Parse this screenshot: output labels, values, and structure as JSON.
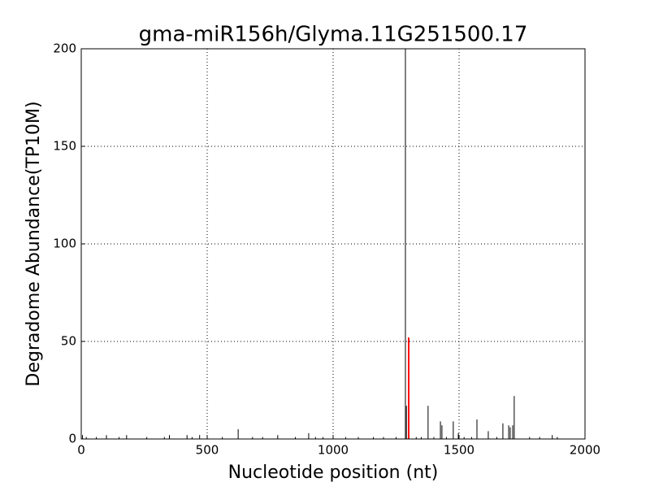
{
  "chart_data": {
    "type": "stem",
    "title": "gma-miR156h/Glyma.11G251500.17",
    "xlabel": "Nucleotide position (nt)",
    "ylabel": "Degradome Abundance(TP10M)",
    "xlim": [
      0,
      2000
    ],
    "xticks": [
      0,
      500,
      1000,
      1500,
      2000
    ],
    "ylim": [
      0,
      200
    ],
    "yticks": [
      0,
      50,
      100,
      150,
      200
    ],
    "grid": true,
    "series": [
      {
        "color": "#000000",
        "x": [
          5,
          20,
          60,
          100,
          150,
          180,
          260,
          330,
          350,
          420,
          440,
          470,
          500,
          560,
          623,
          680,
          720,
          780,
          850,
          903,
          930,
          960,
          1000,
          1050,
          1100,
          1160,
          1200,
          1250,
          1287,
          1291,
          1330,
          1350,
          1377,
          1400,
          1426,
          1432,
          1450,
          1477,
          1497,
          1520,
          1550,
          1571,
          1616,
          1650,
          1674,
          1697,
          1703,
          1713,
          1719,
          1780,
          1820,
          1870,
          1890
        ],
        "values": [
          2,
          1,
          1,
          2,
          1,
          2,
          1,
          1,
          2,
          2,
          1,
          2,
          2,
          1,
          5,
          1,
          1,
          2,
          1,
          3,
          1,
          1,
          1,
          1,
          1,
          1,
          1,
          1,
          200,
          17,
          1,
          1,
          17,
          1,
          9,
          7,
          1,
          9,
          3,
          1,
          1,
          10,
          4,
          1,
          8,
          7,
          6,
          7,
          22,
          1,
          1,
          2,
          1
        ]
      },
      {
        "color": "#ff0000",
        "x": [
          1300
        ],
        "values": [
          52
        ]
      }
    ]
  }
}
